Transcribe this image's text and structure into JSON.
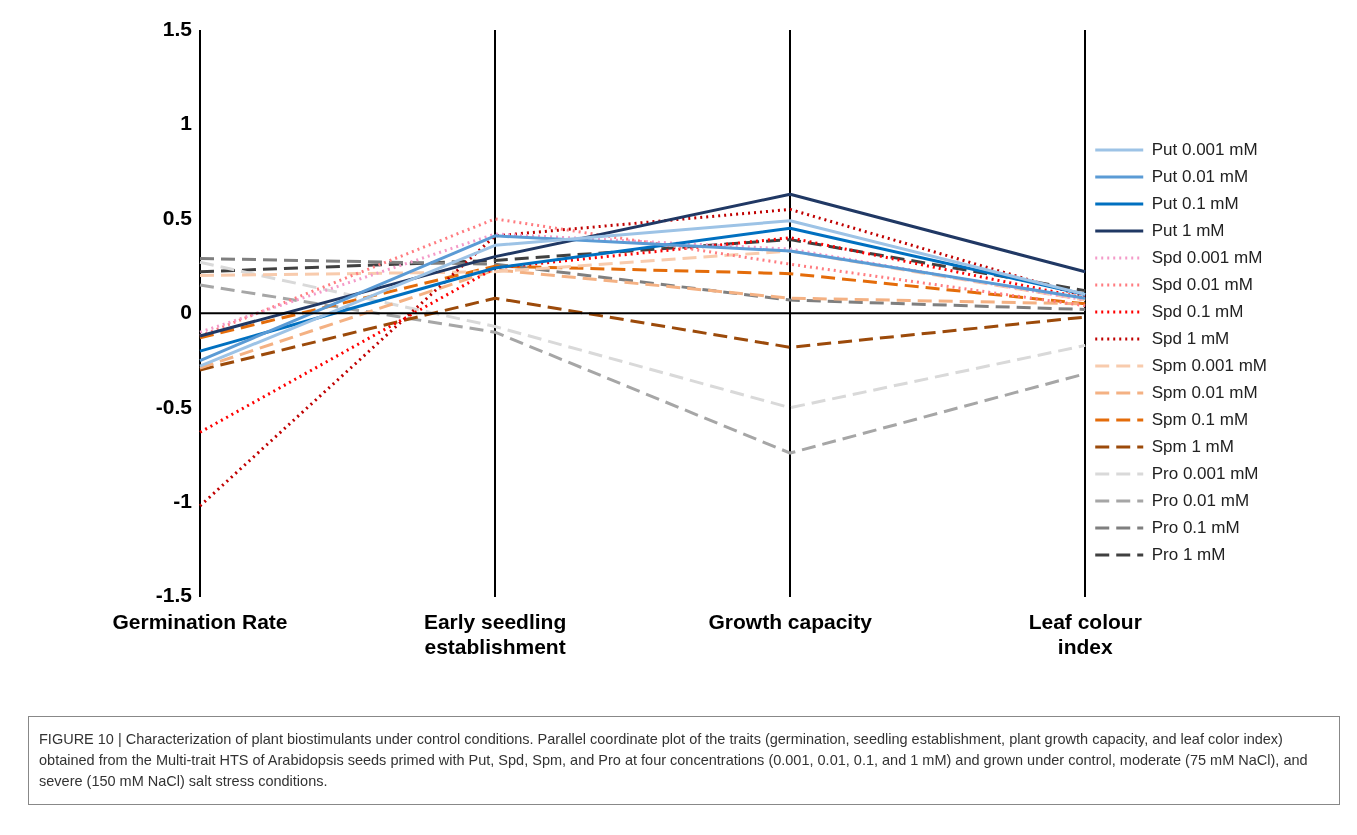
{
  "chart_data": {
    "type": "line",
    "categories": [
      "Germination Rate",
      "Early seedling establishment",
      "Growth capacity",
      "Leaf colour index"
    ],
    "ylim": [
      -1.5,
      1.5
    ],
    "yticks": [
      -1.5,
      -1,
      -0.5,
      0,
      0.5,
      1,
      1.5
    ],
    "grid": "x",
    "legend": "right",
    "marker": "none",
    "ref_lines": [
      {
        "axis": "y",
        "value": 0,
        "color": "#000000"
      }
    ],
    "annotations": [
      "FIGURE 10 | Characterization of plant biostimulants under control conditions. Parallel coordinate plot of the traits (germination, seedling establishment, plant growth capacity, and leaf color index) obtained from the Multi-trait HTS of Arabidopsis seeds primed with Put, Spd, Spm, and Pro at four concentrations (0.001, 0.01, 0.1, and 1 mM) and grown under control, moderate (75 mM NaCl), and severe (150 mM NaCl) salt stress conditions."
    ],
    "series": [
      {
        "name": "Put 0.001 mM",
        "color": "#9dc3e6",
        "line_style": "solid",
        "values": [
          -0.28,
          0.36,
          0.49,
          0.1
        ]
      },
      {
        "name": "Put 0.01 mM",
        "color": "#5b9bd5",
        "line_style": "solid",
        "values": [
          -0.25,
          0.41,
          0.33,
          0.08
        ]
      },
      {
        "name": "Put 0.1 mM",
        "color": "#0070c0",
        "line_style": "solid",
        "values": [
          -0.2,
          0.24,
          0.45,
          0.1
        ]
      },
      {
        "name": "Put 1 mM",
        "color": "#203864",
        "line_style": "solid",
        "values": [
          -0.12,
          0.3,
          0.63,
          0.22
        ]
      },
      {
        "name": "Spd 0.001 mM",
        "color": "#f49ac8",
        "line_style": "dotted",
        "values": [
          -0.1,
          0.42,
          0.34,
          0.07
        ]
      },
      {
        "name": "Spd 0.01 mM",
        "color": "#ff7c80",
        "line_style": "dotted",
        "values": [
          -0.12,
          0.5,
          0.26,
          0.04
        ]
      },
      {
        "name": "Spd 0.1 mM",
        "color": "#ff0000",
        "line_style": "dotted",
        "values": [
          -0.63,
          0.24,
          0.4,
          0.08
        ]
      },
      {
        "name": "Spd 1 mM",
        "color": "#c00000",
        "line_style": "dotted",
        "values": [
          -1.02,
          0.41,
          0.55,
          0.09
        ]
      },
      {
        "name": "Spm 0.001 mM",
        "color": "#f8cbad",
        "line_style": "dashed",
        "values": [
          0.2,
          0.22,
          0.33,
          0.07
        ]
      },
      {
        "name": "Spm 0.01 mM",
        "color": "#f4b183",
        "line_style": "dashed",
        "values": [
          -0.29,
          0.23,
          0.08,
          0.05
        ]
      },
      {
        "name": "Spm 0.1 mM",
        "color": "#e46c0a",
        "line_style": "dashed",
        "values": [
          -0.13,
          0.25,
          0.21,
          0.05
        ]
      },
      {
        "name": "Spm 1 mM",
        "color": "#9c4a0a",
        "line_style": "dashed",
        "values": [
          -0.3,
          0.08,
          -0.18,
          -0.02
        ]
      },
      {
        "name": "Pro 0.001 mM",
        "color": "#d9d9d9",
        "line_style": "dashed",
        "values": [
          0.27,
          -0.07,
          -0.5,
          -0.17
        ]
      },
      {
        "name": "Pro 0.01 mM",
        "color": "#a6a6a6",
        "line_style": "dashed",
        "values": [
          0.15,
          -0.1,
          -0.74,
          -0.32
        ]
      },
      {
        "name": "Pro 0.1 mM",
        "color": "#7f7f7f",
        "line_style": "dashed",
        "values": [
          0.29,
          0.26,
          0.07,
          0.02
        ]
      },
      {
        "name": "Pro 1 mM",
        "color": "#404040",
        "line_style": "dashed",
        "values": [
          0.22,
          0.28,
          0.39,
          0.12
        ]
      }
    ]
  }
}
